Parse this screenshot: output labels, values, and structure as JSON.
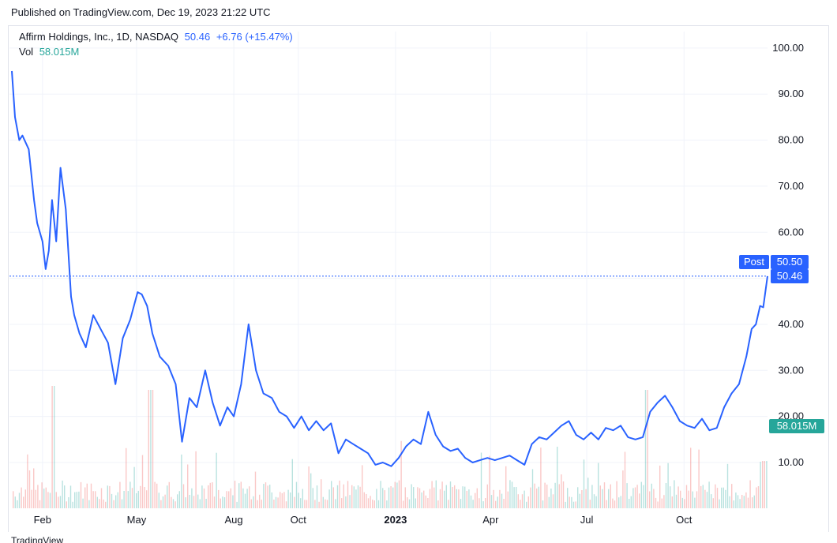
{
  "header": {
    "published": "Published on TradingView.com, Dec 19, 2023 21:22 UTC"
  },
  "legend": {
    "symbol": "Affirm Holdings, Inc., 1D, NASDAQ",
    "last": "50.46",
    "change": "+6.76 (+15.47%)",
    "vol_label": "Vol",
    "vol_value": "58.015M"
  },
  "badges": {
    "post_label": "Post",
    "post_price": "50.50",
    "last_price": "50.46",
    "volume": "58.015M"
  },
  "footer": {
    "logo_text": "TradingView"
  },
  "colors": {
    "line": "#2962ff",
    "badge": "#2962ff",
    "volume_up": "#26a69a",
    "volume_down": "#ef5350",
    "grid": "#f0f3fa"
  },
  "chart_data": {
    "type": "line",
    "title": "Affirm Holdings, Inc., 1D, NASDAQ",
    "y_ticks": [
      "100.00",
      "90.00",
      "80.00",
      "70.00",
      "60.00",
      "50.00",
      "40.00",
      "30.00",
      "20.00",
      "10.00"
    ],
    "y_range": [
      0,
      105
    ],
    "x_ticks": [
      "Feb",
      "May",
      "Aug",
      "Oct",
      "2023",
      "Apr",
      "Jul",
      "Oct"
    ],
    "x_tick_dates": [
      "2022-02-01",
      "2022-05-01",
      "2022-08-01",
      "2022-10-01",
      "2023-01-01",
      "2023-04-01",
      "2023-07-01",
      "2023-10-01"
    ],
    "x_range": [
      "2022-01-03",
      "2023-12-19"
    ],
    "grid": true,
    "series": [
      {
        "values": [
          [
            "2022-01-03",
            95.0
          ],
          [
            "2022-01-06",
            85.0
          ],
          [
            "2022-01-10",
            80.0
          ],
          [
            "2022-01-13",
            81.0
          ],
          [
            "2022-01-19",
            78.0
          ],
          [
            "2022-01-24",
            67.0
          ],
          [
            "2022-01-27",
            62.0
          ],
          [
            "2022-02-01",
            58.0
          ],
          [
            "2022-02-04",
            52.0
          ],
          [
            "2022-02-07",
            56.0
          ],
          [
            "2022-02-10",
            67.0
          ],
          [
            "2022-02-14",
            58.0
          ],
          [
            "2022-02-18",
            74.0
          ],
          [
            "2022-02-23",
            65.0
          ],
          [
            "2022-02-28",
            46.0
          ],
          [
            "2022-03-03",
            42.0
          ],
          [
            "2022-03-08",
            38.0
          ],
          [
            "2022-03-14",
            35.0
          ],
          [
            "2022-03-21",
            42.0
          ],
          [
            "2022-03-28",
            39.0
          ],
          [
            "2022-04-04",
            36.0
          ],
          [
            "2022-04-11",
            27.0
          ],
          [
            "2022-04-18",
            37.0
          ],
          [
            "2022-04-25",
            41.0
          ],
          [
            "2022-05-02",
            47.0
          ],
          [
            "2022-05-06",
            46.5
          ],
          [
            "2022-05-11",
            44.0
          ],
          [
            "2022-05-16",
            38.0
          ],
          [
            "2022-05-23",
            33.0
          ],
          [
            "2022-05-31",
            31.0
          ],
          [
            "2022-06-07",
            27.0
          ],
          [
            "2022-06-13",
            14.5
          ],
          [
            "2022-06-20",
            24.0
          ],
          [
            "2022-06-27",
            22.0
          ],
          [
            "2022-07-05",
            30.0
          ],
          [
            "2022-07-12",
            23.0
          ],
          [
            "2022-07-19",
            18.0
          ],
          [
            "2022-07-26",
            22.0
          ],
          [
            "2022-08-01",
            20.0
          ],
          [
            "2022-08-08",
            27.0
          ],
          [
            "2022-08-15",
            40.0
          ],
          [
            "2022-08-22",
            30.0
          ],
          [
            "2022-08-29",
            25.0
          ],
          [
            "2022-09-06",
            24.0
          ],
          [
            "2022-09-13",
            21.0
          ],
          [
            "2022-09-20",
            20.0
          ],
          [
            "2022-09-27",
            17.5
          ],
          [
            "2022-10-04",
            20.0
          ],
          [
            "2022-10-11",
            17.0
          ],
          [
            "2022-10-18",
            19.0
          ],
          [
            "2022-10-25",
            17.0
          ],
          [
            "2022-11-01",
            18.5
          ],
          [
            "2022-11-08",
            12.0
          ],
          [
            "2022-11-15",
            15.0
          ],
          [
            "2022-11-22",
            14.0
          ],
          [
            "2022-11-29",
            13.0
          ],
          [
            "2022-12-06",
            12.0
          ],
          [
            "2022-12-13",
            9.5
          ],
          [
            "2022-12-20",
            10.0
          ],
          [
            "2022-12-28",
            9.2
          ],
          [
            "2023-01-04",
            11.0
          ],
          [
            "2023-01-11",
            13.5
          ],
          [
            "2023-01-18",
            15.0
          ],
          [
            "2023-01-25",
            14.0
          ],
          [
            "2023-02-01",
            21.0
          ],
          [
            "2023-02-08",
            16.0
          ],
          [
            "2023-02-15",
            13.5
          ],
          [
            "2023-02-22",
            12.5
          ],
          [
            "2023-03-01",
            13.0
          ],
          [
            "2023-03-08",
            11.0
          ],
          [
            "2023-03-15",
            10.0
          ],
          [
            "2023-03-22",
            10.5
          ],
          [
            "2023-03-29",
            11.0
          ],
          [
            "2023-04-05",
            10.5
          ],
          [
            "2023-04-12",
            11.0
          ],
          [
            "2023-04-19",
            11.5
          ],
          [
            "2023-04-26",
            10.5
          ],
          [
            "2023-05-03",
            9.5
          ],
          [
            "2023-05-10",
            14.0
          ],
          [
            "2023-05-17",
            15.5
          ],
          [
            "2023-05-24",
            15.0
          ],
          [
            "2023-05-31",
            16.5
          ],
          [
            "2023-06-07",
            18.0
          ],
          [
            "2023-06-14",
            19.0
          ],
          [
            "2023-06-21",
            16.0
          ],
          [
            "2023-06-28",
            15.0
          ],
          [
            "2023-07-05",
            16.5
          ],
          [
            "2023-07-12",
            15.0
          ],
          [
            "2023-07-19",
            17.5
          ],
          [
            "2023-07-26",
            17.0
          ],
          [
            "2023-08-02",
            18.0
          ],
          [
            "2023-08-09",
            15.5
          ],
          [
            "2023-08-16",
            15.0
          ],
          [
            "2023-08-23",
            15.5
          ],
          [
            "2023-08-30",
            21.0
          ],
          [
            "2023-09-06",
            23.0
          ],
          [
            "2023-09-13",
            24.5
          ],
          [
            "2023-09-20",
            22.0
          ],
          [
            "2023-09-27",
            19.0
          ],
          [
            "2023-10-04",
            18.0
          ],
          [
            "2023-10-11",
            17.5
          ],
          [
            "2023-10-18",
            19.5
          ],
          [
            "2023-10-25",
            17.0
          ],
          [
            "2023-11-01",
            17.5
          ],
          [
            "2023-11-08",
            22.0
          ],
          [
            "2023-11-15",
            25.0
          ],
          [
            "2023-11-22",
            27.0
          ],
          [
            "2023-11-29",
            33.0
          ],
          [
            "2023-12-04",
            39.0
          ],
          [
            "2023-12-08",
            40.0
          ],
          [
            "2023-12-12",
            44.0
          ],
          [
            "2023-12-15",
            43.7
          ],
          [
            "2023-12-19",
            50.46
          ]
        ]
      }
    ]
  }
}
